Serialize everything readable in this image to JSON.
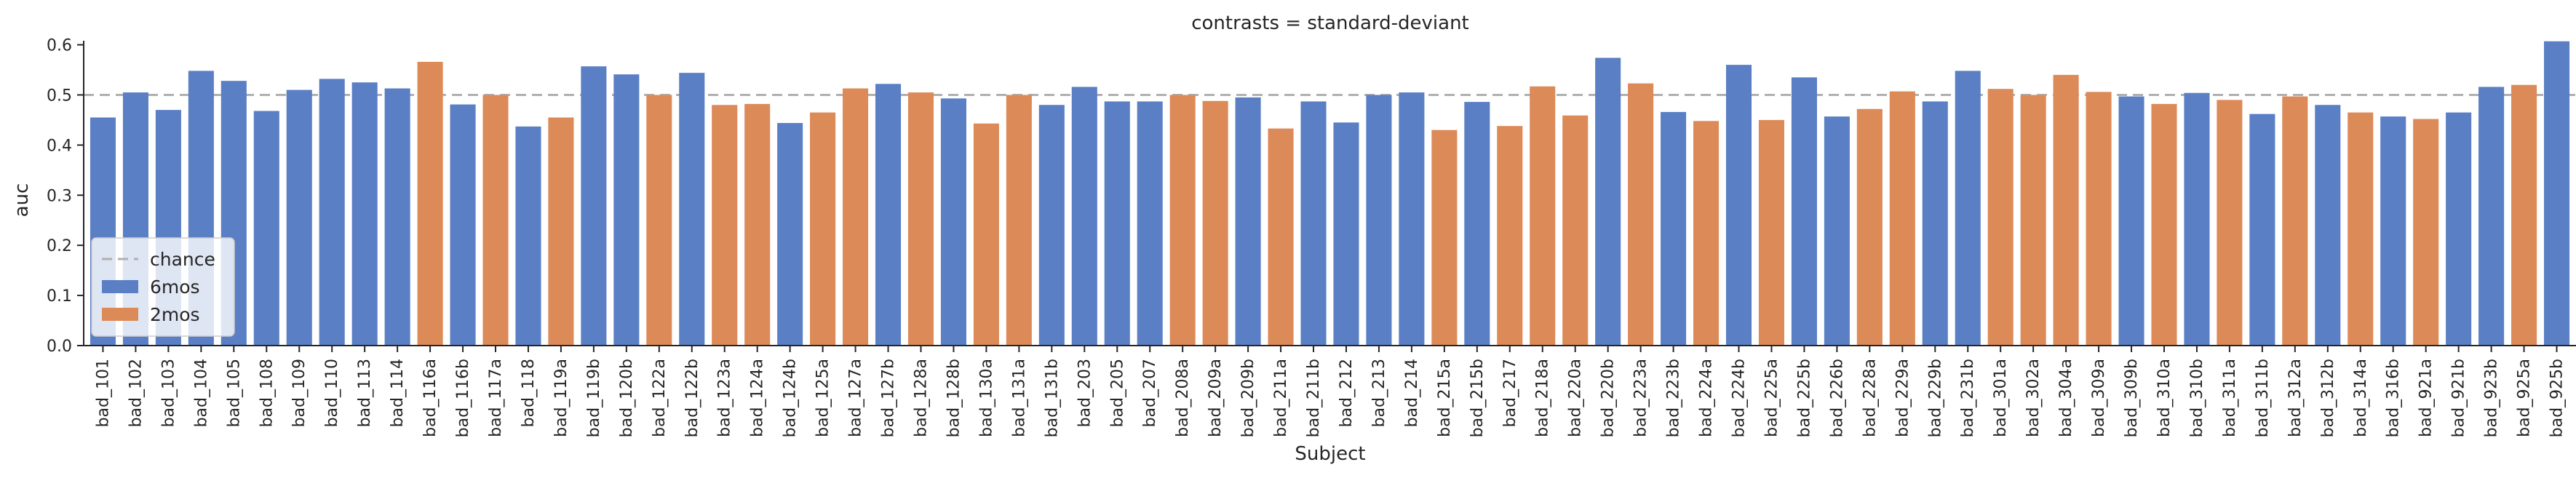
{
  "chart_data": {
    "type": "bar",
    "title": "contrasts = standard-deviant",
    "xlabel": "Subject",
    "ylabel": "auc",
    "ylim": [
      0,
      0.64
    ],
    "yticks": [
      "0.0",
      "0.1",
      "0.2",
      "0.3",
      "0.4",
      "0.5",
      "0.6"
    ],
    "reference_line": {
      "value": 0.5,
      "name": "chance",
      "style": "dashed",
      "color": "#b0b0b0"
    },
    "legend": {
      "placement": "lower-left",
      "entries": [
        {
          "name": "chance",
          "kind": "line",
          "color": "#b0b0b0"
        },
        {
          "name": "6mos",
          "kind": "patch",
          "color": "#5a7fc4"
        },
        {
          "name": "2mos",
          "kind": "patch",
          "color": "#dc8a58"
        }
      ]
    },
    "colors": {
      "6mos": "#5a7fc4",
      "2mos": "#dc8a58"
    },
    "categories": [
      "bad_101",
      "bad_102",
      "bad_103",
      "bad_104",
      "bad_105",
      "bad_108",
      "bad_109",
      "bad_110",
      "bad_113",
      "bad_114",
      "bad_116a",
      "bad_116b",
      "bad_117a",
      "bad_118",
      "bad_119a",
      "bad_119b",
      "bad_120b",
      "bad_122a",
      "bad_122b",
      "bad_123a",
      "bad_124a",
      "bad_124b",
      "bad_125a",
      "bad_127a",
      "bad_127b",
      "bad_128a",
      "bad_128b",
      "bad_130a",
      "bad_131a",
      "bad_131b",
      "bad_203",
      "bad_205",
      "bad_207",
      "bad_208a",
      "bad_209a",
      "bad_209b",
      "bad_211a",
      "bad_211b",
      "bad_212",
      "bad_213",
      "bad_214",
      "bad_215a",
      "bad_215b",
      "bad_217",
      "bad_218a",
      "bad_220a",
      "bad_220b",
      "bad_223a",
      "bad_223b",
      "bad_224a",
      "bad_224b",
      "bad_225a",
      "bad_225b",
      "bad_226b",
      "bad_228a",
      "bad_229a",
      "bad_229b",
      "bad_231b",
      "bad_301a",
      "bad_302a",
      "bad_304a",
      "bad_309a",
      "bad_309b",
      "bad_310a",
      "bad_310b",
      "bad_311a",
      "bad_311b",
      "bad_312a",
      "bad_312b",
      "bad_314a",
      "bad_316b",
      "bad_921a",
      "bad_921b",
      "bad_923b",
      "bad_925a",
      "bad_925b"
    ],
    "values": [
      0.455,
      0.505,
      0.47,
      0.548,
      0.528,
      0.468,
      0.51,
      0.532,
      0.525,
      0.513,
      0.566,
      0.481,
      0.5,
      0.437,
      0.455,
      0.557,
      0.541,
      0.5,
      0.544,
      0.48,
      0.482,
      0.444,
      0.465,
      0.513,
      0.522,
      0.505,
      0.493,
      0.443,
      0.5,
      0.48,
      0.516,
      0.487,
      0.487,
      0.5,
      0.488,
      0.495,
      0.433,
      0.487,
      0.445,
      0.5,
      0.505,
      0.43,
      0.486,
      0.438,
      0.517,
      0.459,
      0.574,
      0.523,
      0.466,
      0.448,
      0.56,
      0.45,
      0.535,
      0.457,
      0.472,
      0.507,
      0.487,
      0.548,
      0.512,
      0.5,
      0.54,
      0.506,
      0.497,
      0.482,
      0.504,
      0.49,
      0.462,
      0.497,
      0.48,
      0.465,
      0.457,
      0.452,
      0.465,
      0.516,
      0.52,
      0.607
    ],
    "groups": [
      "6mos",
      "6mos",
      "6mos",
      "6mos",
      "6mos",
      "6mos",
      "6mos",
      "6mos",
      "6mos",
      "6mos",
      "2mos",
      "6mos",
      "2mos",
      "6mos",
      "2mos",
      "6mos",
      "6mos",
      "2mos",
      "6mos",
      "2mos",
      "2mos",
      "6mos",
      "2mos",
      "2mos",
      "6mos",
      "2mos",
      "6mos",
      "2mos",
      "2mos",
      "6mos",
      "6mos",
      "6mos",
      "6mos",
      "2mos",
      "2mos",
      "6mos",
      "2mos",
      "6mos",
      "6mos",
      "6mos",
      "6mos",
      "2mos",
      "6mos",
      "2mos",
      "2mos",
      "2mos",
      "6mos",
      "2mos",
      "6mos",
      "2mos",
      "6mos",
      "2mos",
      "6mos",
      "6mos",
      "2mos",
      "2mos",
      "6mos",
      "6mos",
      "2mos",
      "2mos",
      "2mos",
      "2mos",
      "6mos",
      "2mos",
      "6mos",
      "2mos",
      "6mos",
      "2mos",
      "6mos",
      "2mos",
      "6mos",
      "2mos",
      "6mos",
      "6mos",
      "2mos",
      "6mos"
    ]
  }
}
